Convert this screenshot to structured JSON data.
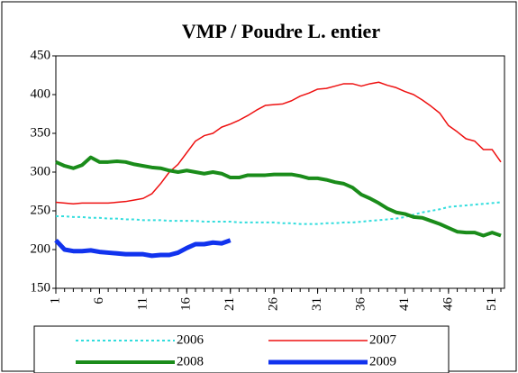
{
  "chart_data": {
    "type": "line",
    "title": "VMP / Poudre L. entier",
    "x": [
      1,
      2,
      3,
      4,
      5,
      6,
      7,
      8,
      9,
      10,
      11,
      12,
      13,
      14,
      15,
      16,
      17,
      18,
      19,
      20,
      21,
      22,
      23,
      24,
      25,
      26,
      27,
      28,
      29,
      30,
      31,
      32,
      33,
      34,
      35,
      36,
      37,
      38,
      39,
      40,
      41,
      42,
      43,
      44,
      45,
      46,
      47,
      48,
      49,
      50,
      51,
      52
    ],
    "xlim": [
      1,
      52
    ],
    "xticks": [
      1,
      6,
      11,
      16,
      21,
      26,
      31,
      36,
      41,
      46,
      51
    ],
    "ylim": [
      150,
      450
    ],
    "yticks": [
      150,
      200,
      250,
      300,
      350,
      400,
      450
    ],
    "series": [
      {
        "name": "2006",
        "color": "#33dddd",
        "line_style": "dotted",
        "line_width": 2,
        "values": [
          243,
          243,
          242,
          242,
          241,
          241,
          240,
          240,
          239,
          239,
          238,
          238,
          238,
          237,
          237,
          237,
          237,
          236,
          236,
          236,
          236,
          235,
          235,
          235,
          235,
          235,
          234,
          234,
          233,
          233,
          233,
          234,
          234,
          235,
          235,
          236,
          237,
          238,
          239,
          240,
          242,
          245,
          248,
          250,
          252,
          255,
          256,
          257,
          258,
          259,
          260,
          261
        ]
      },
      {
        "name": "2007",
        "color": "#ee1111",
        "line_style": "solid",
        "line_width": 1.5,
        "values": [
          261,
          260,
          259,
          260,
          260,
          260,
          260,
          261,
          262,
          264,
          266,
          272,
          285,
          300,
          310,
          325,
          340,
          347,
          350,
          358,
          362,
          367,
          373,
          380,
          386,
          387,
          388,
          392,
          398,
          402,
          407,
          408,
          411,
          414,
          414,
          411,
          414,
          416,
          412,
          409,
          404,
          400,
          393,
          385,
          376,
          360,
          352,
          343,
          340,
          329,
          329,
          313
        ]
      },
      {
        "name": "2008",
        "color": "#1a8c1a",
        "line_style": "solid",
        "line_width": 4,
        "values": [
          313,
          308,
          305,
          309,
          319,
          313,
          313,
          314,
          313,
          310,
          308,
          306,
          305,
          302,
          300,
          302,
          300,
          298,
          300,
          298,
          293,
          293,
          296,
          296,
          296,
          297,
          297,
          297,
          295,
          292,
          292,
          290,
          287,
          285,
          280,
          271,
          266,
          260,
          253,
          248,
          246,
          242,
          241,
          237,
          233,
          228,
          223,
          222,
          222,
          218,
          222,
          218
        ]
      },
      {
        "name": "2009",
        "color": "#1133ee",
        "line_style": "solid",
        "line_width": 5,
        "values": [
          212,
          200,
          198,
          198,
          199,
          197,
          196,
          195,
          194,
          194,
          194,
          192,
          193,
          193,
          196,
          202,
          207,
          207,
          209,
          208,
          212,
          null,
          null,
          null,
          null,
          null,
          null,
          null,
          null,
          null,
          null,
          null,
          null,
          null,
          null,
          null,
          null,
          null,
          null,
          null,
          null,
          null,
          null,
          null,
          null,
          null,
          null,
          null,
          null,
          null,
          null,
          null
        ]
      }
    ]
  }
}
